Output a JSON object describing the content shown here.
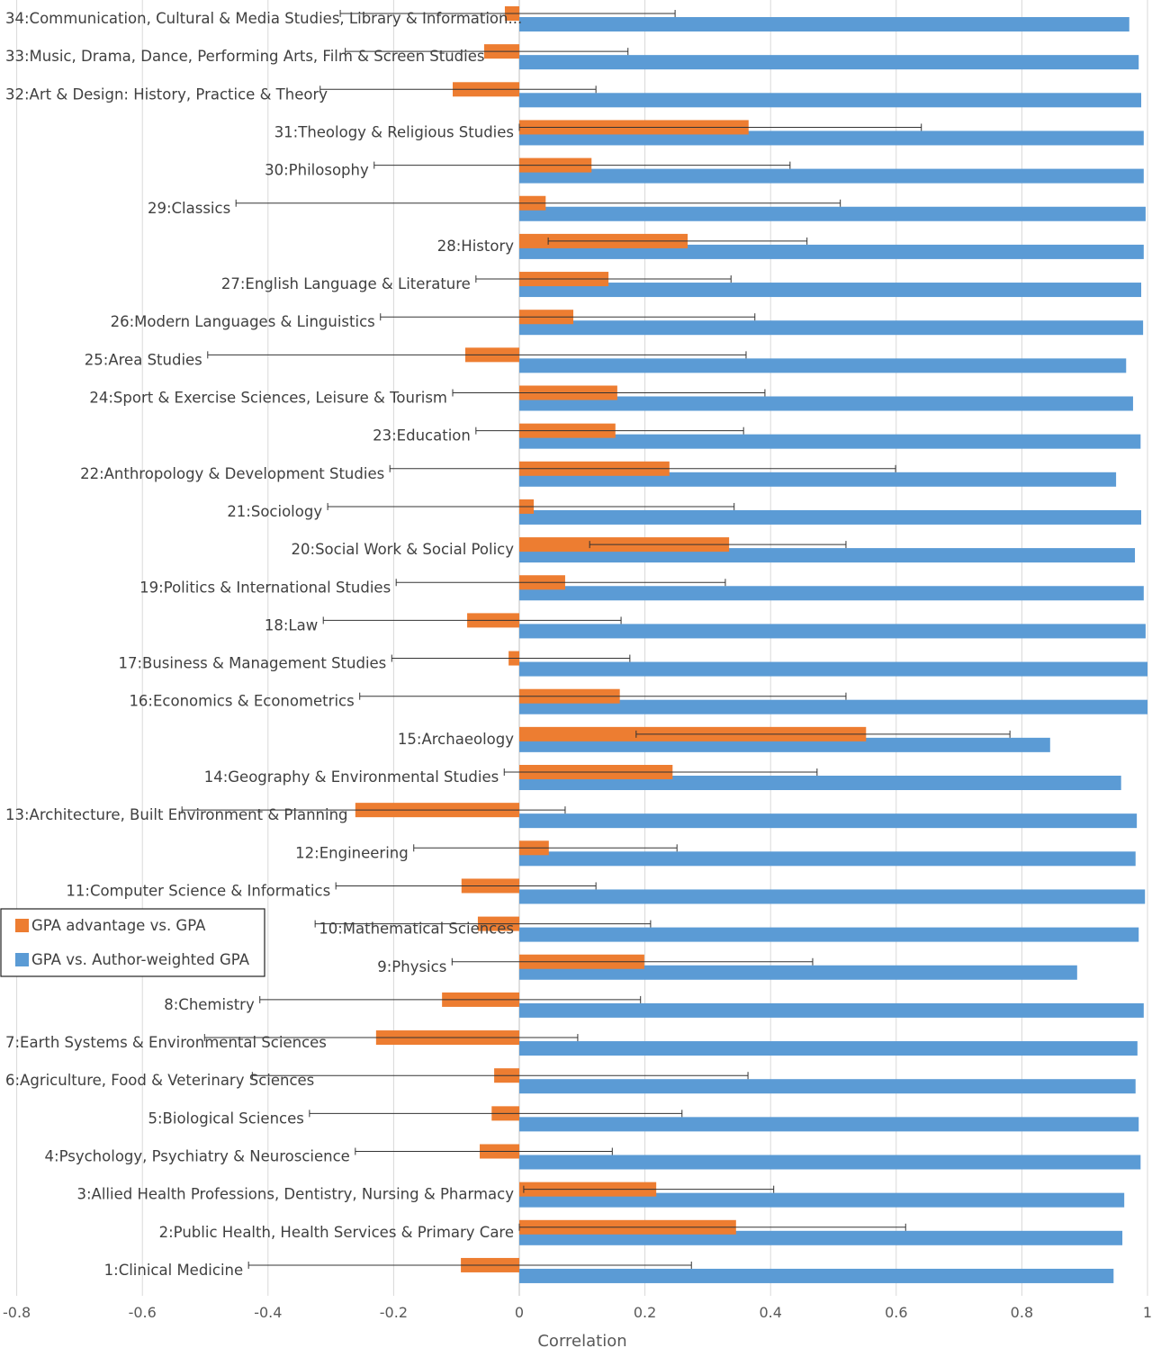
{
  "chart_data": {
    "type": "bar",
    "orientation": "horizontal",
    "xlabel": "Correlation",
    "xlim": [
      -0.8,
      1
    ],
    "xticks": [
      "-0.8",
      "-0.6",
      "-0.4",
      "-0.2",
      "0",
      "0.2",
      "0.4",
      "0.6",
      "0.8",
      "1"
    ],
    "grid": "vertical",
    "legend_placement": "left",
    "colors": {
      "orange": "#ED7D31",
      "blue": "#5B9BD5"
    },
    "categories": [
      "34:Communication, Cultural & Media Studies, Library & Information...",
      "33:Music, Drama, Dance, Performing Arts, Film & Screen Studies",
      "32:Art & Design: History, Practice & Theory",
      "31:Theology & Religious Studies",
      "30:Philosophy",
      "29:Classics",
      "28:History",
      "27:English Language & Literature",
      "26:Modern Languages & Linguistics",
      "25:Area Studies",
      "24:Sport & Exercise Sciences, Leisure & Tourism",
      "23:Education",
      "22:Anthropology & Development Studies",
      "21:Sociology",
      "20:Social Work & Social Policy",
      "19:Politics & International Studies",
      "18:Law",
      "17:Business & Management Studies",
      "16:Economics & Econometrics",
      "15:Archaeology",
      "14:Geography & Environmental Studies",
      "13:Architecture, Built Environment & Planning",
      "12:Engineering",
      "11:Computer Science & Informatics",
      "10:Mathematical Sciences",
      "9:Physics",
      "8:Chemistry",
      "7:Earth Systems & Environmental Sciences",
      "6:Agriculture, Food & Veterinary Sciences",
      "5:Biological Sciences",
      "4:Psychology, Psychiatry & Neuroscience",
      "3:Allied Health Professions, Dentistry, Nursing & Pharmacy",
      "2:Public Health, Health Services & Primary Care",
      "1:Clinical Medicine"
    ],
    "series": [
      {
        "name": "GPA advantage vs. GPA",
        "color": "#ED7D31",
        "values": [
          -0.023,
          -0.056,
          -0.106,
          0.365,
          0.115,
          0.042,
          0.268,
          0.142,
          0.086,
          -0.086,
          0.156,
          0.153,
          0.239,
          0.023,
          0.334,
          0.073,
          -0.083,
          -0.017,
          0.16,
          0.552,
          0.244,
          -0.261,
          0.047,
          -0.092,
          -0.066,
          0.199,
          -0.123,
          -0.228,
          -0.04,
          -0.044,
          -0.063,
          0.218,
          0.345,
          -0.093
        ],
        "error_low": [
          -0.285,
          -0.277,
          -0.317,
          0.0,
          -0.231,
          -0.451,
          0.046,
          -0.069,
          -0.221,
          -0.496,
          -0.106,
          -0.069,
          -0.206,
          -0.305,
          0.112,
          -0.196,
          -0.312,
          -0.203,
          -0.254,
          0.186,
          -0.024,
          -0.537,
          -0.168,
          -0.292,
          -0.325,
          -0.107,
          -0.413,
          -0.501,
          -0.425,
          -0.334,
          -0.261,
          0.007,
          0.0,
          -0.431
        ],
        "error_high": [
          0.248,
          0.173,
          0.122,
          0.64,
          0.431,
          0.511,
          0.458,
          0.337,
          0.375,
          0.361,
          0.391,
          0.357,
          0.599,
          0.342,
          0.52,
          0.328,
          0.162,
          0.176,
          0.52,
          0.781,
          0.474,
          0.073,
          0.251,
          0.122,
          0.209,
          0.467,
          0.193,
          0.093,
          0.364,
          0.259,
          0.148,
          0.405,
          0.615,
          0.274
        ]
      },
      {
        "name": "GPA vs. Author-weighted GPA",
        "color": "#5B9BD5",
        "values": [
          0.971,
          0.986,
          0.99,
          0.994,
          0.994,
          0.997,
          0.994,
          0.99,
          0.993,
          0.966,
          0.977,
          0.989,
          0.95,
          0.99,
          0.98,
          0.994,
          0.997,
          1.0,
          1.0,
          0.845,
          0.958,
          0.983,
          0.981,
          0.996,
          0.986,
          0.888,
          0.994,
          0.984,
          0.981,
          0.986,
          0.989,
          0.963,
          0.96,
          0.946
        ]
      }
    ]
  }
}
